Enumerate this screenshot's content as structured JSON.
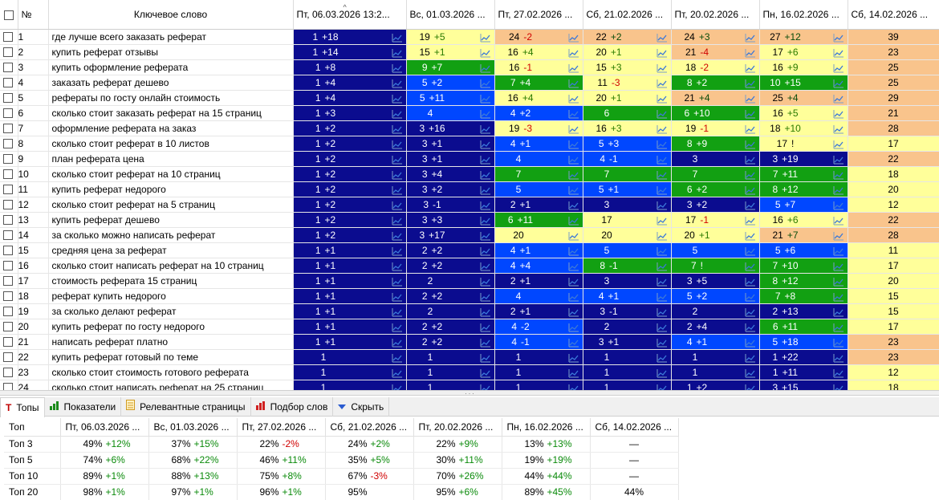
{
  "header": {
    "check_all": "",
    "num": "№",
    "keyword": "Ключевое слово",
    "dates": [
      "Пт, 06.03.2026 13:2...",
      "Вс, 01.03.2026 ...",
      "Пт, 27.02.2026 ...",
      "Сб, 21.02.2026 ...",
      "Пт, 20.02.2026 ...",
      "Пн, 16.02.2026 ...",
      "Сб, 14.02.2026 ..."
    ]
  },
  "colors": {
    "blue": "#0047ff",
    "navy": "#0b0c8f",
    "green": "#12a012",
    "yellow": "#ffff9a",
    "orange": "#f9c48c"
  },
  "rows": [
    {
      "n": "1",
      "kw": "где лучше всего заказать реферат",
      "c": [
        [
          "1",
          "+18",
          "navy"
        ],
        [
          "19",
          "+5",
          "yellow"
        ],
        [
          "24",
          "-2",
          "orange"
        ],
        [
          "22",
          "+2",
          "orange"
        ],
        [
          "24",
          "+3",
          "orange"
        ],
        [
          "27",
          "+12",
          "orange"
        ],
        [
          "39",
          "",
          "orange"
        ]
      ]
    },
    {
      "n": "2",
      "kw": "купить реферат отзывы",
      "c": [
        [
          "1",
          "+14",
          "navy"
        ],
        [
          "15",
          "+1",
          "yellow"
        ],
        [
          "16",
          "+4",
          "yellow"
        ],
        [
          "20",
          "+1",
          "yellow"
        ],
        [
          "21",
          "-4",
          "orange"
        ],
        [
          "17",
          "+6",
          "yellow"
        ],
        [
          "23",
          "",
          "orange"
        ]
      ]
    },
    {
      "n": "3",
      "kw": "купить оформление реферата",
      "c": [
        [
          "1",
          "+8",
          "navy"
        ],
        [
          "9",
          "+7",
          "green"
        ],
        [
          "16",
          "-1",
          "yellow"
        ],
        [
          "15",
          "+3",
          "yellow"
        ],
        [
          "18",
          "-2",
          "yellow"
        ],
        [
          "16",
          "+9",
          "yellow"
        ],
        [
          "25",
          "",
          "orange"
        ]
      ]
    },
    {
      "n": "4",
      "kw": "заказать реферат дешево",
      "c": [
        [
          "1",
          "+4",
          "navy"
        ],
        [
          "5",
          "+2",
          "blue"
        ],
        [
          "7",
          "+4",
          "green"
        ],
        [
          "11",
          "-3",
          "yellow"
        ],
        [
          "8",
          "+2",
          "green"
        ],
        [
          "10",
          "+15",
          "green"
        ],
        [
          "25",
          "",
          "orange"
        ]
      ]
    },
    {
      "n": "5",
      "kw": "рефераты по госту онлайн стоимость",
      "c": [
        [
          "1",
          "+4",
          "navy"
        ],
        [
          "5",
          "+11",
          "blue"
        ],
        [
          "16",
          "+4",
          "yellow"
        ],
        [
          "20",
          "+1",
          "yellow"
        ],
        [
          "21",
          "+4",
          "orange"
        ],
        [
          "25",
          "+4",
          "orange"
        ],
        [
          "29",
          "",
          "orange"
        ]
      ]
    },
    {
      "n": "6",
      "kw": "сколько стоит заказать реферат на 15 страниц",
      "c": [
        [
          "1",
          "+3",
          "navy"
        ],
        [
          "4",
          "",
          "blue"
        ],
        [
          "4",
          "+2",
          "blue"
        ],
        [
          "6",
          "",
          "green"
        ],
        [
          "6",
          "+10",
          "green"
        ],
        [
          "16",
          "+5",
          "yellow"
        ],
        [
          "21",
          "",
          "orange"
        ]
      ]
    },
    {
      "n": "7",
      "kw": "оформление реферата на заказ",
      "c": [
        [
          "1",
          "+2",
          "navy"
        ],
        [
          "3",
          "+16",
          "navy"
        ],
        [
          "19",
          "-3",
          "yellow"
        ],
        [
          "16",
          "+3",
          "yellow"
        ],
        [
          "19",
          "-1",
          "yellow"
        ],
        [
          "18",
          "+10",
          "yellow"
        ],
        [
          "28",
          "",
          "orange"
        ]
      ]
    },
    {
      "n": "8",
      "kw": "сколько стоит реферат в 10 листов",
      "c": [
        [
          "1",
          "+2",
          "navy"
        ],
        [
          "3",
          "+1",
          "navy"
        ],
        [
          "4",
          "+1",
          "blue"
        ],
        [
          "5",
          "+3",
          "blue"
        ],
        [
          "8",
          "+9",
          "green"
        ],
        [
          "17",
          "!",
          "yellow"
        ],
        [
          "17",
          "",
          "yellow"
        ]
      ]
    },
    {
      "n": "9",
      "kw": "план реферата цена",
      "c": [
        [
          "1",
          "+2",
          "navy"
        ],
        [
          "3",
          "+1",
          "navy"
        ],
        [
          "4",
          "",
          "blue"
        ],
        [
          "4",
          "-1",
          "blue"
        ],
        [
          "3",
          "",
          "navy"
        ],
        [
          "3",
          "+19",
          "navy"
        ],
        [
          "22",
          "",
          "orange"
        ]
      ]
    },
    {
      "n": "10",
      "kw": "сколько стоит реферат на 10 страниц",
      "c": [
        [
          "1",
          "+2",
          "navy"
        ],
        [
          "3",
          "+4",
          "navy"
        ],
        [
          "7",
          "",
          "green"
        ],
        [
          "7",
          "",
          "green"
        ],
        [
          "7",
          "",
          "green"
        ],
        [
          "7",
          "+11",
          "green"
        ],
        [
          "18",
          "",
          "yellow"
        ]
      ]
    },
    {
      "n": "11",
      "kw": "купить реферат недорого",
      "c": [
        [
          "1",
          "+2",
          "navy"
        ],
        [
          "3",
          "+2",
          "navy"
        ],
        [
          "5",
          "",
          "blue"
        ],
        [
          "5",
          "+1",
          "blue"
        ],
        [
          "6",
          "+2",
          "green"
        ],
        [
          "8",
          "+12",
          "green"
        ],
        [
          "20",
          "",
          "yellow"
        ]
      ]
    },
    {
      "n": "12",
      "kw": "сколько стоит реферат на 5 страниц",
      "c": [
        [
          "1",
          "+2",
          "navy"
        ],
        [
          "3",
          "-1",
          "navy"
        ],
        [
          "2",
          "+1",
          "navy"
        ],
        [
          "3",
          "",
          "navy"
        ],
        [
          "3",
          "+2",
          "navy"
        ],
        [
          "5",
          "+7",
          "blue"
        ],
        [
          "12",
          "",
          "yellow"
        ]
      ]
    },
    {
      "n": "13",
      "kw": "купить реферат дешево",
      "c": [
        [
          "1",
          "+2",
          "navy"
        ],
        [
          "3",
          "+3",
          "navy"
        ],
        [
          "6",
          "+11",
          "green"
        ],
        [
          "17",
          "",
          "yellow"
        ],
        [
          "17",
          "-1",
          "yellow"
        ],
        [
          "16",
          "+6",
          "yellow"
        ],
        [
          "22",
          "",
          "orange"
        ]
      ]
    },
    {
      "n": "14",
      "kw": "за сколько можно написать реферат",
      "c": [
        [
          "1",
          "+2",
          "navy"
        ],
        [
          "3",
          "+17",
          "navy"
        ],
        [
          "20",
          "",
          "yellow"
        ],
        [
          "20",
          "",
          "yellow"
        ],
        [
          "20",
          "+1",
          "yellow"
        ],
        [
          "21",
          "+7",
          "orange"
        ],
        [
          "28",
          "",
          "orange"
        ]
      ]
    },
    {
      "n": "15",
      "kw": "средняя цена за реферат",
      "c": [
        [
          "1",
          "+1",
          "navy"
        ],
        [
          "2",
          "+2",
          "navy"
        ],
        [
          "4",
          "+1",
          "blue"
        ],
        [
          "5",
          "",
          "blue"
        ],
        [
          "5",
          "",
          "blue"
        ],
        [
          "5",
          "+6",
          "blue"
        ],
        [
          "11",
          "",
          "yellow"
        ]
      ]
    },
    {
      "n": "16",
      "kw": "сколько стоит написать реферат на 10 страниц",
      "c": [
        [
          "1",
          "+1",
          "navy"
        ],
        [
          "2",
          "+2",
          "navy"
        ],
        [
          "4",
          "+4",
          "blue"
        ],
        [
          "8",
          "-1",
          "green"
        ],
        [
          "7",
          "!",
          "green"
        ],
        [
          "7",
          "+10",
          "green"
        ],
        [
          "17",
          "",
          "yellow"
        ]
      ]
    },
    {
      "n": "17",
      "kw": "стоимость реферата 15 страниц",
      "c": [
        [
          "1",
          "+1",
          "navy"
        ],
        [
          "2",
          "",
          "navy"
        ],
        [
          "2",
          "+1",
          "navy"
        ],
        [
          "3",
          "",
          "navy"
        ],
        [
          "3",
          "+5",
          "navy"
        ],
        [
          "8",
          "+12",
          "green"
        ],
        [
          "20",
          "",
          "yellow"
        ]
      ]
    },
    {
      "n": "18",
      "kw": "реферат купить недорого",
      "c": [
        [
          "1",
          "+1",
          "navy"
        ],
        [
          "2",
          "+2",
          "navy"
        ],
        [
          "4",
          "",
          "blue"
        ],
        [
          "4",
          "+1",
          "blue"
        ],
        [
          "5",
          "+2",
          "blue"
        ],
        [
          "7",
          "+8",
          "green"
        ],
        [
          "15",
          "",
          "yellow"
        ]
      ]
    },
    {
      "n": "19",
      "kw": "за сколько делают реферат",
      "c": [
        [
          "1",
          "+1",
          "navy"
        ],
        [
          "2",
          "",
          "navy"
        ],
        [
          "2",
          "+1",
          "navy"
        ],
        [
          "3",
          "-1",
          "navy"
        ],
        [
          "2",
          "",
          "navy"
        ],
        [
          "2",
          "+13",
          "navy"
        ],
        [
          "15",
          "",
          "yellow"
        ]
      ]
    },
    {
      "n": "20",
      "kw": "купить реферат по госту недорого",
      "c": [
        [
          "1",
          "+1",
          "navy"
        ],
        [
          "2",
          "+2",
          "navy"
        ],
        [
          "4",
          "-2",
          "blue"
        ],
        [
          "2",
          "",
          "navy"
        ],
        [
          "2",
          "+4",
          "navy"
        ],
        [
          "6",
          "+11",
          "green"
        ],
        [
          "17",
          "",
          "yellow"
        ]
      ]
    },
    {
      "n": "21",
      "kw": "написать реферат платно",
      "c": [
        [
          "1",
          "+1",
          "navy"
        ],
        [
          "2",
          "+2",
          "navy"
        ],
        [
          "4",
          "-1",
          "blue"
        ],
        [
          "3",
          "+1",
          "navy"
        ],
        [
          "4",
          "+1",
          "blue"
        ],
        [
          "5",
          "+18",
          "blue"
        ],
        [
          "23",
          "",
          "orange"
        ]
      ]
    },
    {
      "n": "22",
      "kw": "купить реферат готовый по теме",
      "c": [
        [
          "1",
          "",
          "navy"
        ],
        [
          "1",
          "",
          "navy"
        ],
        [
          "1",
          "",
          "navy"
        ],
        [
          "1",
          "",
          "navy"
        ],
        [
          "1",
          "",
          "navy"
        ],
        [
          "1",
          "+22",
          "navy"
        ],
        [
          "23",
          "",
          "orange"
        ]
      ]
    },
    {
      "n": "23",
      "kw": "сколько стоит стоимость готового реферата",
      "c": [
        [
          "1",
          "",
          "navy"
        ],
        [
          "1",
          "",
          "navy"
        ],
        [
          "1",
          "",
          "navy"
        ],
        [
          "1",
          "",
          "navy"
        ],
        [
          "1",
          "",
          "navy"
        ],
        [
          "1",
          "+11",
          "navy"
        ],
        [
          "12",
          "",
          "yellow"
        ]
      ]
    },
    {
      "n": "24",
      "kw": "сколько стоит написать реферат на 25 страниц",
      "c": [
        [
          "1",
          "",
          "navy"
        ],
        [
          "1",
          "",
          "navy"
        ],
        [
          "1",
          "",
          "navy"
        ],
        [
          "1",
          "",
          "navy"
        ],
        [
          "1",
          "+2",
          "navy"
        ],
        [
          "3",
          "+15",
          "navy"
        ],
        [
          "18",
          "",
          "yellow"
        ]
      ]
    }
  ],
  "tabs": [
    {
      "label": "Топы",
      "icon": "T"
    },
    {
      "label": "Показатели",
      "icon": "bars"
    },
    {
      "label": "Релевантные страницы",
      "icon": "doc"
    },
    {
      "label": "Подбор слов",
      "icon": "chart"
    },
    {
      "label": "Скрыть",
      "icon": "down"
    }
  ],
  "tops": {
    "header": [
      "Топ",
      "Пт, 06.03.2026 ...",
      "Вс, 01.03.2026 ...",
      "Пт, 27.02.2026 ...",
      "Сб, 21.02.2026 ...",
      "Пт, 20.02.2026 ...",
      "Пн, 16.02.2026 ...",
      "Сб, 14.02.2026 ..."
    ],
    "rows": [
      {
        "label": "Топ 3",
        "c": [
          [
            "49%",
            "+12%"
          ],
          [
            "37%",
            "+15%"
          ],
          [
            "22%",
            "-2%"
          ],
          [
            "24%",
            "+2%"
          ],
          [
            "22%",
            "+9%"
          ],
          [
            "13%",
            "+13%"
          ],
          [
            "—",
            ""
          ]
        ]
      },
      {
        "label": "Топ 5",
        "c": [
          [
            "74%",
            "+6%"
          ],
          [
            "68%",
            "+22%"
          ],
          [
            "46%",
            "+11%"
          ],
          [
            "35%",
            "+5%"
          ],
          [
            "30%",
            "+11%"
          ],
          [
            "19%",
            "+19%"
          ],
          [
            "—",
            ""
          ]
        ]
      },
      {
        "label": "Топ 10",
        "c": [
          [
            "89%",
            "+1%"
          ],
          [
            "88%",
            "+13%"
          ],
          [
            "75%",
            "+8%"
          ],
          [
            "67%",
            "-3%"
          ],
          [
            "70%",
            "+26%"
          ],
          [
            "44%",
            "+44%"
          ],
          [
            "—",
            ""
          ]
        ]
      },
      {
        "label": "Топ 20",
        "c": [
          [
            "98%",
            "+1%"
          ],
          [
            "97%",
            "+1%"
          ],
          [
            "96%",
            "+1%"
          ],
          [
            "95%",
            ""
          ],
          [
            "95%",
            "+6%"
          ],
          [
            "89%",
            "+45%"
          ],
          [
            "44%",
            ""
          ]
        ]
      }
    ]
  }
}
